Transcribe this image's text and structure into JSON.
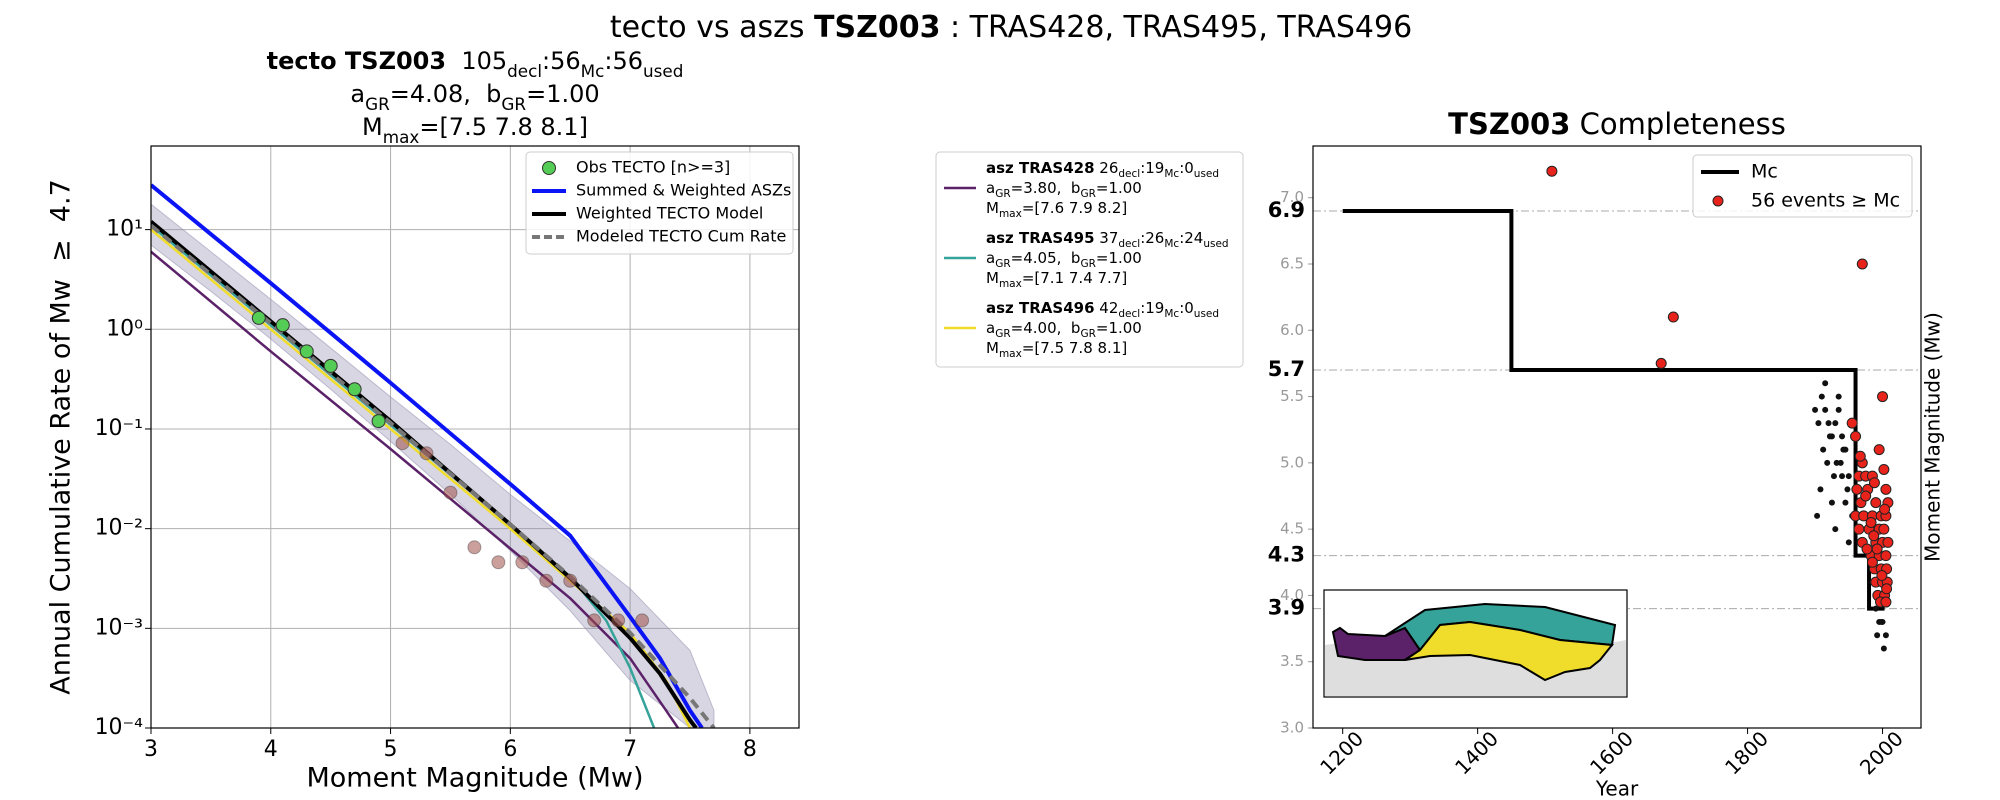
{
  "suptitle": [
    "tecto vs aszs ",
    {
      "text": "TSZ003",
      "style": "bold"
    },
    " : TRAS428, TRAS495, TRAS496"
  ],
  "chart_data": [
    {
      "type": "line",
      "title_lines": [
        [
          {
            "text": "tecto TSZ003",
            "style": "bold"
          },
          "  105",
          {
            "text": "decl",
            "style": "sub"
          },
          ":56",
          {
            "text": "Mc",
            "style": "sub"
          },
          ":56",
          {
            "text": "used",
            "style": "sub"
          }
        ],
        [
          "a",
          {
            "text": "GR",
            "style": "sub"
          },
          "=4.08,  b",
          {
            "text": "GR",
            "style": "sub"
          },
          "=1.00"
        ],
        [
          "M",
          {
            "text": "max",
            "style": "sub"
          },
          "=[7.5 7.8 8.1]"
        ]
      ],
      "xlabel": "Moment Magnitude (Mw)",
      "ylabel": "Annual Cumulative Rate of Mw  ≥  4.7",
      "log_y": true,
      "grid": true,
      "legend": "upper right",
      "xlim": [
        3,
        8.41
      ],
      "ylim": [
        0.0001,
        69
      ],
      "xticks": [
        3,
        4,
        5,
        6,
        7,
        8
      ],
      "yticks": [
        {
          "value": 0.0001,
          "label": "10⁻⁴"
        },
        {
          "value": 0.001,
          "label": "10⁻³"
        },
        {
          "value": 0.01,
          "label": "10⁻²"
        },
        {
          "value": 0.1,
          "label": "10⁻¹"
        },
        {
          "value": 1,
          "label": "10⁰"
        },
        {
          "value": 10,
          "label": "10¹"
        }
      ],
      "series": [
        {
          "name": "Obs TECTO [n>=3]",
          "type": "scatter",
          "color": "#55cc55",
          "x": [
            3.9,
            4.1,
            4.3,
            4.5,
            4.7,
            4.9
          ],
          "values": [
            1.3,
            1.1,
            0.6,
            0.43,
            0.25,
            0.12
          ]
        },
        {
          "name": "Summed & Weighted ASZs",
          "type": "line",
          "color": "#0a14f5",
          "x": [
            3,
            3.5,
            4,
            4.5,
            5,
            5.5,
            6,
            6.5,
            7,
            7.25,
            7.5,
            7.6
          ],
          "values": [
            28,
            9,
            2.9,
            0.92,
            0.29,
            0.09,
            0.028,
            0.0085,
            0.0013,
            0.0005,
            0.00015,
            0.0001
          ]
        },
        {
          "name": "Weighted TECTO Model",
          "type": "line",
          "color": "#000000",
          "x": [
            3,
            3.5,
            4,
            4.5,
            5,
            5.5,
            6,
            6.5,
            7,
            7.25,
            7.5,
            7.55
          ],
          "values": [
            12,
            3.8,
            1.2,
            0.38,
            0.12,
            0.036,
            0.011,
            0.0032,
            0.0008,
            0.00035,
            0.00012,
            0.0001
          ]
        },
        {
          "name": "Modeled TECTO Cum Rate",
          "type": "line",
          "dashed": true,
          "color": "#777777",
          "x": [
            3,
            4,
            5,
            6,
            6.5,
            7,
            7.5,
            7.7
          ],
          "values": [
            11,
            1.15,
            0.115,
            0.011,
            0.0033,
            0.0009,
            0.0002,
            0.0001
          ]
        },
        {
          "type": "scatter",
          "color": "#a0524a",
          "x": [
            5.1,
            5.3,
            5.5,
            5.7,
            5.9,
            6.1,
            6.3,
            6.5,
            6.7,
            6.9,
            7.1
          ],
          "values": [
            0.072,
            0.057,
            0.023,
            0.0065,
            0.0046,
            0.0046,
            0.003,
            0.003,
            0.0012,
            0.0012,
            0.0012
          ]
        },
        {
          "type": "band",
          "color": "#8f89ad",
          "x": [
            3,
            3.5,
            4,
            4.5,
            5,
            5.5,
            6,
            6.5,
            7,
            7.5,
            7.7
          ],
          "lower": [
            7,
            2.4,
            0.8,
            0.25,
            0.075,
            0.022,
            0.006,
            0.0015,
            0.0003,
            0.0001,
            0.0001
          ],
          "upper": [
            18,
            6,
            2,
            0.65,
            0.21,
            0.07,
            0.022,
            0.0075,
            0.0025,
            0.0006,
            0.00015
          ]
        }
      ],
      "asz_series": [
        {
          "lines": [
            [
              {
                "text": "asz TRAS428",
                "style": "bold"
              },
              " 26",
              {
                "text": "decl",
                "style": "sub"
              },
              ":19",
              {
                "text": "Mc",
                "style": "sub"
              },
              ":0",
              {
                "text": "used",
                "style": "sub"
              }
            ],
            [
              "a",
              {
                "text": "GR",
                "style": "sub"
              },
              "=3.80,  b",
              {
                "text": "GR",
                "style": "sub"
              },
              "=1.00"
            ],
            [
              "M",
              {
                "text": "max",
                "style": "sub"
              },
              "=[7.6 7.9 8.2]"
            ]
          ],
          "color": "#5b2169",
          "x": [
            3,
            4,
            5,
            6,
            6.5,
            7,
            7.3,
            7.4
          ],
          "values": [
            6,
            0.6,
            0.063,
            0.0063,
            0.002,
            0.0005,
            0.00015,
            0.0001
          ]
        },
        {
          "lines": [
            [
              {
                "text": "asz TRAS495",
                "style": "bold"
              },
              " 37",
              {
                "text": "decl",
                "style": "sub"
              },
              ":26",
              {
                "text": "Mc",
                "style": "sub"
              },
              ":24",
              {
                "text": "used",
                "style": "sub"
              }
            ],
            [
              "a",
              {
                "text": "GR",
                "style": "sub"
              },
              "=4.05,  b",
              {
                "text": "GR",
                "style": "sub"
              },
              "=1.00"
            ],
            [
              "M",
              {
                "text": "max",
                "style": "sub"
              },
              "=[7.1 7.4 7.7]"
            ]
          ],
          "color": "#35a39a",
          "x": [
            3,
            4,
            5,
            6,
            6.5,
            6.8,
            7,
            7.2
          ],
          "values": [
            11,
            1.1,
            0.11,
            0.011,
            0.0033,
            0.0012,
            0.0004,
            0.0001
          ]
        },
        {
          "lines": [
            [
              {
                "text": "asz TRAS496",
                "style": "bold"
              },
              " 42",
              {
                "text": "decl",
                "style": "sub"
              },
              ":19",
              {
                "text": "Mc",
                "style": "sub"
              },
              ":0",
              {
                "text": "used",
                "style": "sub"
              }
            ],
            [
              "a",
              {
                "text": "GR",
                "style": "sub"
              },
              "=4.00,  b",
              {
                "text": "GR",
                "style": "sub"
              },
              "=1.00"
            ],
            [
              "M",
              {
                "text": "max",
                "style": "sub"
              },
              "=[7.5 7.8 8.1]"
            ]
          ],
          "color": "#f0dc2a",
          "x": [
            3,
            4,
            5,
            6,
            6.5,
            7,
            7.3,
            7.5
          ],
          "values": [
            10,
            1.0,
            0.1,
            0.01,
            0.003,
            0.0009,
            0.0003,
            0.0001
          ]
        }
      ]
    },
    {
      "type": "scatter",
      "title": [
        {
          "text": "TSZ003",
          "style": "bold"
        },
        " Completeness"
      ],
      "xlabel": "Year",
      "ylabel": "Moment Magnitude (Mw)",
      "legend": "upper right",
      "xlim": [
        1156,
        2057
      ],
      "ylim": [
        3.0,
        7.39
      ],
      "xticks": [
        1200,
        1400,
        1600,
        1800,
        2000
      ],
      "yticks": [
        {
          "value": 3.0,
          "label": "3.0"
        },
        3.5,
        {
          "value": 4.0,
          "label": "4.0"
        },
        4.5,
        {
          "value": 5.0,
          "label": "5.0"
        },
        5.5,
        {
          "value": 6.0,
          "label": "6.0"
        },
        6.5,
        {
          "value": 7.0,
          "label": "7.0"
        }
      ],
      "mc_ticks": [
        3.9,
        4.3,
        5.7,
        6.9
      ],
      "series": [
        {
          "name": "Mc",
          "type": "step",
          "color": "#000000",
          "x": [
            1200,
            1450,
            1960,
            1980,
            2003
          ],
          "values": [
            6.9,
            5.7,
            4.3,
            3.9,
            3.9
          ]
        },
        {
          "type": "scatter",
          "color": "#111111",
          "small": true,
          "x": [
            1900,
            1905,
            1910,
            1915,
            1920,
            1925,
            1930,
            1935,
            1940,
            1945,
            1912,
            1922,
            1932,
            1942,
            1918,
            1928,
            1938,
            1948,
            1908,
            1925,
            1940,
            1903,
            1930,
            1945,
            1915,
            1935,
            1950,
            1955,
            1950,
            1985,
            1990,
            1995,
            2000,
            2005,
            1992,
            2002,
            1998,
            2000
          ],
          "values": [
            5.4,
            5.3,
            5.5,
            5.4,
            5.3,
            5.2,
            5.3,
            5.4,
            5.2,
            5.1,
            5.1,
            5.2,
            5.0,
            5.1,
            5.0,
            4.9,
            5.0,
            4.8,
            4.8,
            4.7,
            4.9,
            4.6,
            4.5,
            4.7,
            5.6,
            5.5,
            4.9,
            4.6,
            4.4,
            4.1,
            3.9,
            3.8,
            3.8,
            3.7,
            3.7,
            3.6,
            3.8,
            4.0
          ]
        },
        {
          "name": "56 events ≥ Mc",
          "type": "scatter",
          "color": "#e8231c",
          "x": [
            1510,
            1672,
            1690,
            1970,
            2000,
            1955,
            1960,
            1970,
            1995,
            1965,
            1975,
            1985,
            1962,
            1978,
            2005,
            1968,
            1990,
            2008,
            1960,
            1972,
            1985,
            1998,
            2005,
            1965,
            1980,
            1995,
            2002,
            1970,
            1990,
            2000,
            1983,
            1995,
            2005,
            1988,
            1998,
            2006,
            1990,
            2000,
            2007,
            1993,
            2003,
            1997,
            2005,
            1985,
            1992,
            2008,
            1975,
            1988,
            2002,
            1967,
            1983,
            2006,
            1999,
            1987,
            2003,
            1977
          ],
          "values": [
            7.2,
            5.75,
            6.1,
            6.5,
            5.5,
            5.3,
            5.2,
            5.0,
            5.1,
            4.9,
            4.9,
            4.9,
            4.8,
            4.8,
            4.8,
            4.7,
            4.7,
            4.7,
            4.6,
            4.6,
            4.6,
            4.6,
            4.6,
            4.5,
            4.5,
            4.5,
            4.5,
            4.4,
            4.4,
            4.4,
            4.3,
            4.3,
            4.3,
            4.2,
            4.2,
            4.2,
            4.1,
            4.1,
            4.1,
            4.0,
            4.0,
            3.95,
            3.95,
            4.25,
            4.35,
            4.4,
            4.75,
            4.85,
            4.95,
            5.05,
            4.55,
            4.05,
            4.15,
            4.45,
            4.65,
            4.35
          ]
        }
      ]
    }
  ]
}
